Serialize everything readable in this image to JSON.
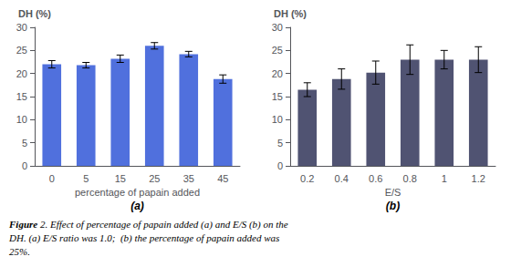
{
  "chart_data": [
    {
      "type": "bar",
      "title": "(a)",
      "categories": [
        "0",
        "5",
        "15",
        "25",
        "35",
        "45"
      ],
      "values": [
        22.0,
        21.8,
        23.2,
        26.0,
        24.2,
        18.8
      ],
      "errors": [
        0.8,
        0.6,
        0.8,
        0.7,
        0.6,
        0.9
      ],
      "xlabel": "percentage of papain added",
      "ylabel": "DH (%)",
      "ylim": [
        0,
        30
      ],
      "yticks": [
        0,
        5,
        10,
        15,
        20,
        25,
        30
      ],
      "grid": false
    },
    {
      "type": "bar",
      "title": "(b)",
      "categories": [
        "0.2",
        "0.4",
        "0.6",
        "0.8",
        "1",
        "1.2"
      ],
      "values": [
        16.5,
        18.8,
        20.2,
        23.0,
        23.0,
        23.0
      ],
      "errors": [
        1.5,
        2.2,
        2.5,
        3.2,
        2.0,
        2.8
      ],
      "xlabel": "E/S",
      "ylabel": "DH (%)",
      "ylim": [
        0,
        30
      ],
      "yticks": [
        0,
        5,
        10,
        15,
        20,
        25,
        30
      ],
      "grid": false
    }
  ],
  "caption": "Figure 2. Effect of percentage of papain added (a) and E/S (b) on the\nDH. (a) E/S ratio was 1.0;  (b) the percentage of papain added was\n25%."
}
